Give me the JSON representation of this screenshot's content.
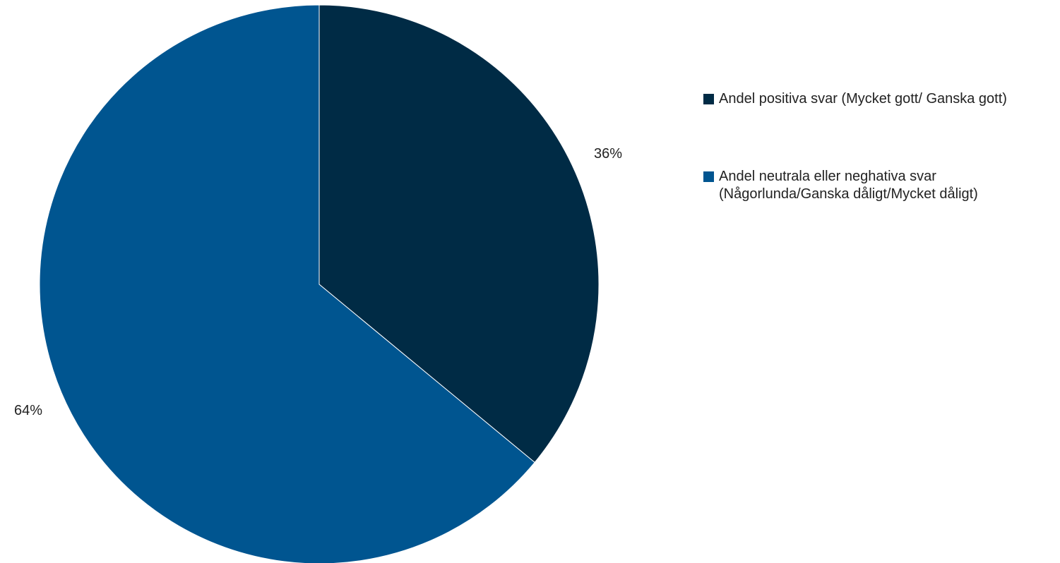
{
  "chart_data": {
    "type": "pie",
    "categories": [
      "Andel positiva svar (Mycket gott/ Ganska gott)",
      "Andel neutrala eller neghativa svar (Någorlunda/Ganska dåligt/Mycket dåligt)"
    ],
    "values": [
      36,
      64
    ],
    "data_labels": [
      "36%",
      "64%"
    ],
    "colors": [
      "#002b45",
      "#005590"
    ],
    "start_angle": "12 o'clock, clockwise",
    "legend_position": "right"
  }
}
